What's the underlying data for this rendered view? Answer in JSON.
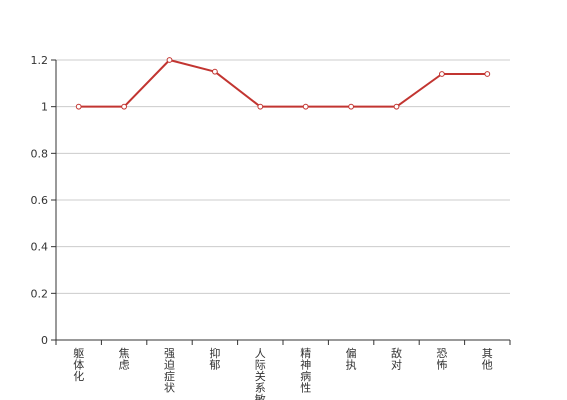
{
  "chart_data": {
    "type": "line",
    "categories": [
      "躯体化",
      "焦虑",
      "强迫症状",
      "抑郁",
      "人际关系敏感",
      "精神病性",
      "偏执",
      "敌对",
      "恐怖",
      "其他"
    ],
    "series": [
      {
        "values": [
          1,
          1,
          1.2,
          1.15,
          1,
          1,
          1,
          1,
          1.14,
          1.14
        ],
        "color": "#c23531"
      }
    ],
    "y_ticks": [
      "0",
      "0.2",
      "0.4",
      "0.6",
      "0.8",
      "1",
      "1.2"
    ],
    "ylim": [
      0,
      1.2
    ],
    "grid": true,
    "legend": "none",
    "title": "",
    "xlabel": "",
    "ylabel": ""
  }
}
